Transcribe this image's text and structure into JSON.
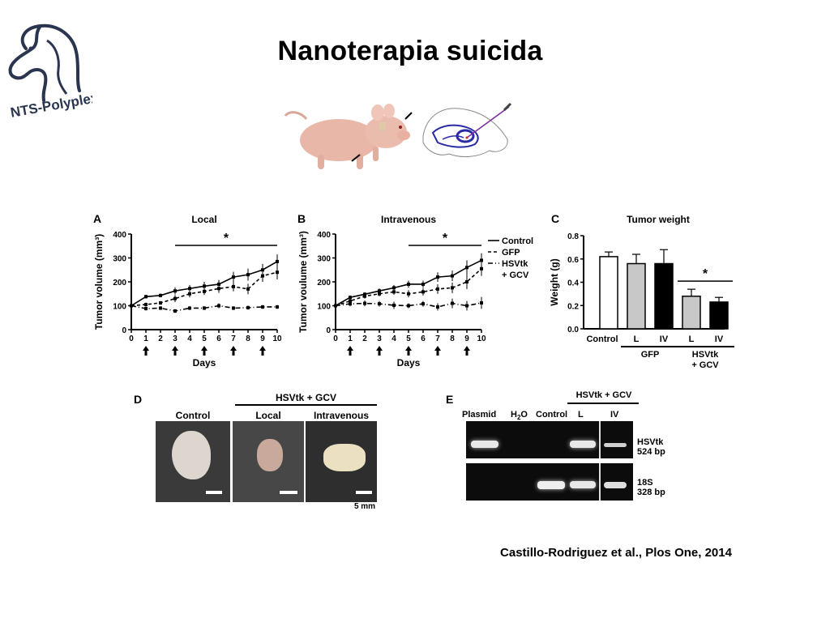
{
  "slide": {
    "title": "Nanoterapia suicida",
    "logo_text": "NTS-Polyplex",
    "citation": "Castillo-Rodriguez et al., Plos One, 2014"
  },
  "chart_data": [
    {
      "panel": "A",
      "type": "line",
      "title": "Local",
      "xlabel": "Days",
      "ylabel": "Tumor volume (mm³)",
      "x": [
        0,
        1,
        2,
        3,
        4,
        5,
        6,
        7,
        8,
        9,
        10
      ],
      "xlim": [
        0,
        10
      ],
      "ylim": [
        0,
        400
      ],
      "yticks": [
        0,
        100,
        200,
        300,
        400
      ],
      "injection_days": [
        1,
        3,
        5,
        7,
        9
      ],
      "significance": "*",
      "series": [
        {
          "name": "Control",
          "style": "solid",
          "values": [
            100,
            138,
            143,
            162,
            172,
            182,
            190,
            220,
            230,
            250,
            285
          ],
          "errors": [
            5,
            8,
            8,
            15,
            15,
            18,
            18,
            22,
            25,
            25,
            30
          ]
        },
        {
          "name": "GFP",
          "style": "dashed",
          "values": [
            100,
            105,
            112,
            130,
            150,
            160,
            172,
            180,
            170,
            225,
            240
          ],
          "errors": [
            5,
            8,
            8,
            15,
            15,
            15,
            18,
            20,
            22,
            25,
            30
          ]
        },
        {
          "name": "HSVtk + GCV",
          "style": "dash-dot",
          "values": [
            100,
            88,
            90,
            78,
            90,
            90,
            100,
            90,
            92,
            95,
            95
          ],
          "errors": [
            5,
            8,
            8,
            8,
            8,
            8,
            10,
            8,
            8,
            8,
            8
          ]
        }
      ]
    },
    {
      "panel": "B",
      "type": "line",
      "title": "Intravenous",
      "xlabel": "Days",
      "ylabel": "Tumor voulume (mm³)",
      "x": [
        0,
        1,
        2,
        3,
        4,
        5,
        6,
        7,
        8,
        9,
        10
      ],
      "xlim": [
        0,
        10
      ],
      "ylim": [
        0,
        400
      ],
      "yticks": [
        0,
        100,
        200,
        300,
        400
      ],
      "injection_days": [
        1,
        3,
        5,
        7,
        9
      ],
      "significance": "*",
      "series": [
        {
          "name": "Control",
          "style": "solid",
          "values": [
            100,
            135,
            148,
            162,
            175,
            190,
            190,
            220,
            225,
            260,
            290
          ],
          "errors": [
            5,
            8,
            8,
            10,
            12,
            15,
            15,
            20,
            22,
            30,
            30
          ]
        },
        {
          "name": "GFP",
          "style": "dashed",
          "values": [
            100,
            120,
            140,
            150,
            158,
            150,
            158,
            170,
            175,
            200,
            255
          ],
          "errors": [
            5,
            10,
            10,
            10,
            12,
            15,
            15,
            20,
            22,
            30,
            30
          ]
        },
        {
          "name": "HSVtk + GCV",
          "style": "dash-dot",
          "values": [
            100,
            108,
            110,
            108,
            102,
            100,
            108,
            95,
            110,
            100,
            112
          ],
          "errors": [
            5,
            10,
            12,
            12,
            15,
            10,
            12,
            15,
            20,
            20,
            25
          ]
        }
      ]
    },
    {
      "panel": "C",
      "type": "bar",
      "title": "Tumor weight",
      "ylabel": "Weight (g)",
      "ylim": [
        0,
        0.8
      ],
      "yticks": [
        "0.0",
        "0.2",
        "0.4",
        "0.6",
        "0.8"
      ],
      "categories": [
        "Control",
        "L",
        "IV",
        "L",
        "IV"
      ],
      "groups": [
        {
          "label": "GFP",
          "from": 1,
          "to": 2
        },
        {
          "label": "HSVtk",
          "label2": "+ GCV",
          "from": 3,
          "to": 4
        }
      ],
      "values": [
        0.62,
        0.56,
        0.56,
        0.28,
        0.23
      ],
      "errors": [
        0.04,
        0.08,
        0.12,
        0.06,
        0.04
      ],
      "bar_colors": [
        "#ffffff",
        "#c8c8c8",
        "#000000",
        "#c8c8c8",
        "#000000"
      ],
      "significance": "*"
    }
  ],
  "photos": {
    "letter": "D",
    "group_label": "HSVtk + GCV",
    "labels": [
      "Control",
      "Local",
      "Intravenous"
    ],
    "scale": "5 mm"
  },
  "gel": {
    "letter": "E",
    "group_label": "HSVtk + GCV",
    "lanes": [
      "Plasmid",
      "H",
      "2",
      "O",
      "Control",
      "L",
      "IV"
    ],
    "bands": [
      {
        "name": "HSVtk",
        "size": "524 bp"
      },
      {
        "name": "18S",
        "size": "328 bp"
      }
    ]
  }
}
